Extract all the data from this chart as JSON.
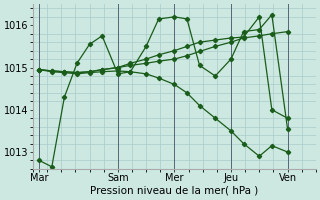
{
  "background_color": "#cce8e0",
  "grid_color": "#aacccc",
  "line_color": "#1a5c1a",
  "title": "Pression niveau de la mer( hPa )",
  "x_ticks_labels": [
    "Mar",
    "Sam",
    "Mer",
    "Jeu",
    "Ven"
  ],
  "x_ticks_pos": [
    2,
    27,
    45,
    63,
    81
  ],
  "xlim": [
    0,
    90
  ],
  "ylim": [
    1012.6,
    1016.5
  ],
  "yticks": [
    1013,
    1014,
    1015,
    1016
  ],
  "series": [
    {
      "x": [
        2,
        6,
        10,
        14,
        18,
        22,
        27,
        31,
        36,
        40,
        45,
        49,
        53,
        58,
        63,
        67,
        72,
        76,
        81
      ],
      "y": [
        1012.8,
        1012.65,
        1014.3,
        1015.1,
        1015.55,
        1015.75,
        1014.85,
        1014.9,
        1015.5,
        1016.15,
        1016.2,
        1016.15,
        1015.05,
        1014.8,
        1015.2,
        1015.85,
        1015.9,
        1016.25,
        1013.55
      ]
    },
    {
      "x": [
        2,
        6,
        10,
        14,
        18,
        22,
        27,
        31,
        36,
        40,
        45,
        49,
        53,
        58,
        63,
        67,
        72,
        76,
        81
      ],
      "y": [
        1014.95,
        1014.92,
        1014.9,
        1014.88,
        1014.9,
        1014.95,
        1015.0,
        1015.05,
        1015.1,
        1015.15,
        1015.2,
        1015.28,
        1015.38,
        1015.5,
        1015.6,
        1015.7,
        1015.75,
        1015.8,
        1015.85
      ]
    },
    {
      "x": [
        2,
        6,
        10,
        14,
        18,
        22,
        27,
        31,
        36,
        40,
        45,
        49,
        53,
        58,
        63,
        67,
        72,
        76,
        81
      ],
      "y": [
        1014.95,
        1014.9,
        1014.88,
        1014.85,
        1014.88,
        1014.9,
        1014.92,
        1014.9,
        1014.85,
        1014.75,
        1014.6,
        1014.4,
        1014.1,
        1013.8,
        1013.5,
        1013.2,
        1012.9,
        1013.15,
        1013.0
      ]
    },
    {
      "x": [
        2,
        6,
        10,
        14,
        18,
        22,
        27,
        31,
        36,
        40,
        45,
        49,
        53,
        58,
        63,
        67,
        72,
        76,
        81
      ],
      "y": [
        1014.95,
        1014.92,
        1014.9,
        1014.88,
        1014.9,
        1014.95,
        1015.0,
        1015.1,
        1015.2,
        1015.3,
        1015.4,
        1015.5,
        1015.6,
        1015.65,
        1015.7,
        1015.72,
        1016.2,
        1014.0,
        1013.8
      ]
    }
  ],
  "vlines": [
    2,
    27,
    45,
    63,
    81
  ],
  "vline_color": "#556677"
}
